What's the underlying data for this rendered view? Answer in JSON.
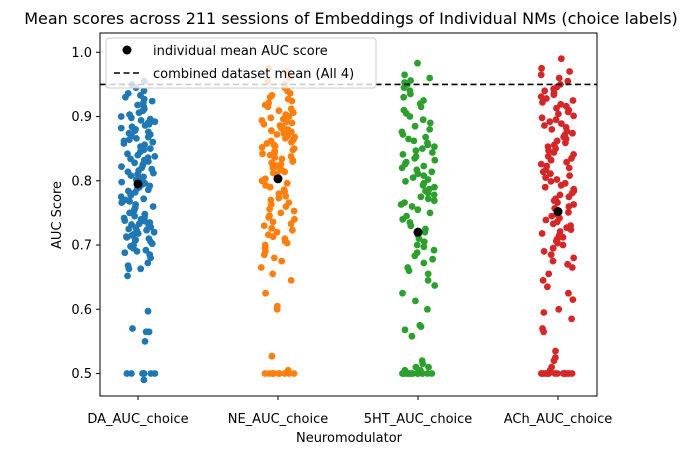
{
  "chart_data": {
    "type": "scatter",
    "title": "Mean scores across 211 sessions of Embeddings of Individual NMs (choice labels)",
    "xlabel": "Neuromodulator",
    "ylabel": "AUC Score",
    "ylim": [
      0.465,
      1.03
    ],
    "yticks": [
      "0.5",
      "0.6",
      "0.7",
      "0.8",
      "0.9",
      "1.0"
    ],
    "categories": [
      "DA_AUC_choice",
      "NE_AUC_choice",
      "5HT_AUC_choice",
      "ACh_AUC_choice"
    ],
    "grid": false,
    "legend_position": "top-left",
    "legend": {
      "individual_label": "individual mean AUC score",
      "combined_label": "combined dataset mean (All 4)"
    },
    "combined_mean": 0.95,
    "series": [
      {
        "category": "DA_AUC_choice",
        "color": "#1f77b4",
        "mean": 0.795,
        "values": [
          0.5,
          0.5,
          0.5,
          0.5,
          0.5,
          0.49,
          0.5,
          0.5,
          0.55,
          0.565,
          0.565,
          0.57,
          0.597,
          0.652,
          0.663,
          0.663,
          0.668,
          0.672,
          0.68,
          0.685,
          0.688,
          0.69,
          0.692,
          0.695,
          0.698,
          0.7,
          0.702,
          0.705,
          0.707,
          0.708,
          0.71,
          0.712,
          0.713,
          0.715,
          0.717,
          0.718,
          0.72,
          0.722,
          0.723,
          0.725,
          0.727,
          0.728,
          0.73,
          0.732,
          0.733,
          0.735,
          0.737,
          0.738,
          0.74,
          0.742,
          0.743,
          0.745,
          0.748,
          0.75,
          0.753,
          0.756,
          0.758,
          0.76,
          0.763,
          0.766,
          0.768,
          0.77,
          0.772,
          0.775,
          0.777,
          0.78,
          0.782,
          0.784,
          0.786,
          0.788,
          0.79,
          0.792,
          0.794,
          0.796,
          0.798,
          0.8,
          0.802,
          0.804,
          0.806,
          0.808,
          0.81,
          0.812,
          0.814,
          0.816,
          0.818,
          0.82,
          0.822,
          0.824,
          0.826,
          0.828,
          0.83,
          0.832,
          0.834,
          0.836,
          0.838,
          0.84,
          0.842,
          0.845,
          0.848,
          0.85,
          0.853,
          0.856,
          0.858,
          0.86,
          0.862,
          0.864,
          0.866,
          0.868,
          0.87,
          0.872,
          0.874,
          0.876,
          0.878,
          0.88,
          0.882,
          0.884,
          0.886,
          0.888,
          0.89,
          0.892,
          0.894,
          0.896,
          0.898,
          0.9,
          0.903,
          0.906,
          0.909,
          0.912,
          0.915,
          0.918,
          0.921,
          0.924,
          0.927,
          0.93,
          0.933,
          0.936,
          0.94,
          0.945,
          0.95,
          0.955
        ]
      },
      {
        "category": "NE_AUC_choice",
        "color": "#ff7f0e",
        "mean": 0.803,
        "values": [
          0.5,
          0.5,
          0.5,
          0.5,
          0.5,
          0.5,
          0.5,
          0.5,
          0.5,
          0.5,
          0.505,
          0.527,
          0.6,
          0.605,
          0.625,
          0.645,
          0.655,
          0.665,
          0.675,
          0.68,
          0.685,
          0.69,
          0.695,
          0.7,
          0.703,
          0.706,
          0.71,
          0.713,
          0.716,
          0.72,
          0.723,
          0.726,
          0.73,
          0.733,
          0.736,
          0.74,
          0.743,
          0.746,
          0.75,
          0.753,
          0.756,
          0.76,
          0.763,
          0.766,
          0.77,
          0.773,
          0.776,
          0.78,
          0.783,
          0.786,
          0.79,
          0.793,
          0.796,
          0.8,
          0.803,
          0.806,
          0.81,
          0.812,
          0.814,
          0.816,
          0.818,
          0.82,
          0.822,
          0.824,
          0.826,
          0.828,
          0.83,
          0.832,
          0.834,
          0.836,
          0.838,
          0.84,
          0.842,
          0.844,
          0.846,
          0.848,
          0.85,
          0.852,
          0.854,
          0.856,
          0.858,
          0.86,
          0.862,
          0.864,
          0.866,
          0.868,
          0.87,
          0.872,
          0.874,
          0.876,
          0.878,
          0.88,
          0.882,
          0.884,
          0.886,
          0.888,
          0.89,
          0.892,
          0.894,
          0.896,
          0.898,
          0.9,
          0.903,
          0.906,
          0.909,
          0.912,
          0.915,
          0.918,
          0.921,
          0.924,
          0.927,
          0.93,
          0.933,
          0.936,
          0.94,
          0.945,
          0.95,
          0.955,
          0.96,
          0.965,
          0.97,
          0.975
        ]
      },
      {
        "category": "5HT_AUC_choice",
        "color": "#2ca02c",
        "mean": 0.72,
        "values": [
          0.5,
          0.5,
          0.5,
          0.5,
          0.5,
          0.5,
          0.5,
          0.5,
          0.5,
          0.5,
          0.5,
          0.5,
          0.5,
          0.5,
          0.5,
          0.5,
          0.505,
          0.505,
          0.51,
          0.51,
          0.515,
          0.52,
          0.558,
          0.568,
          0.573,
          0.575,
          0.6,
          0.613,
          0.625,
          0.637,
          0.645,
          0.655,
          0.66,
          0.665,
          0.672,
          0.678,
          0.683,
          0.688,
          0.692,
          0.697,
          0.7,
          0.705,
          0.71,
          0.715,
          0.72,
          0.725,
          0.73,
          0.735,
          0.74,
          0.745,
          0.75,
          0.755,
          0.76,
          0.763,
          0.766,
          0.769,
          0.772,
          0.775,
          0.778,
          0.781,
          0.784,
          0.787,
          0.79,
          0.793,
          0.796,
          0.799,
          0.802,
          0.805,
          0.808,
          0.811,
          0.814,
          0.817,
          0.82,
          0.823,
          0.826,
          0.829,
          0.832,
          0.835,
          0.838,
          0.841,
          0.844,
          0.847,
          0.85,
          0.853,
          0.856,
          0.859,
          0.862,
          0.865,
          0.868,
          0.872,
          0.876,
          0.88,
          0.885,
          0.89,
          0.895,
          0.9,
          0.905,
          0.91,
          0.915,
          0.92,
          0.925,
          0.93,
          0.935,
          0.94,
          0.945,
          0.95,
          0.953,
          0.956,
          0.96,
          0.965,
          0.983
        ]
      },
      {
        "category": "ACh_AUC_choice",
        "color": "#d62728",
        "mean": 0.752,
        "values": [
          0.5,
          0.5,
          0.5,
          0.5,
          0.5,
          0.5,
          0.5,
          0.5,
          0.5,
          0.5,
          0.5,
          0.5,
          0.5,
          0.5,
          0.5,
          0.5,
          0.505,
          0.51,
          0.52,
          0.525,
          0.535,
          0.565,
          0.57,
          0.585,
          0.595,
          0.6,
          0.615,
          0.625,
          0.635,
          0.645,
          0.655,
          0.665,
          0.67,
          0.675,
          0.68,
          0.685,
          0.69,
          0.695,
          0.7,
          0.703,
          0.706,
          0.709,
          0.712,
          0.715,
          0.718,
          0.721,
          0.724,
          0.727,
          0.73,
          0.733,
          0.736,
          0.739,
          0.742,
          0.745,
          0.748,
          0.751,
          0.754,
          0.757,
          0.76,
          0.763,
          0.766,
          0.769,
          0.772,
          0.775,
          0.778,
          0.781,
          0.784,
          0.787,
          0.79,
          0.793,
          0.796,
          0.799,
          0.802,
          0.805,
          0.808,
          0.811,
          0.814,
          0.817,
          0.82,
          0.823,
          0.826,
          0.829,
          0.832,
          0.835,
          0.838,
          0.841,
          0.844,
          0.847,
          0.85,
          0.853,
          0.856,
          0.859,
          0.862,
          0.865,
          0.868,
          0.871,
          0.874,
          0.877,
          0.88,
          0.883,
          0.886,
          0.889,
          0.892,
          0.895,
          0.898,
          0.901,
          0.904,
          0.907,
          0.91,
          0.913,
          0.916,
          0.919,
          0.922,
          0.925,
          0.928,
          0.931,
          0.934,
          0.937,
          0.94,
          0.943,
          0.946,
          0.95,
          0.955,
          0.96,
          0.965,
          0.97,
          0.975,
          0.99
        ]
      }
    ]
  }
}
